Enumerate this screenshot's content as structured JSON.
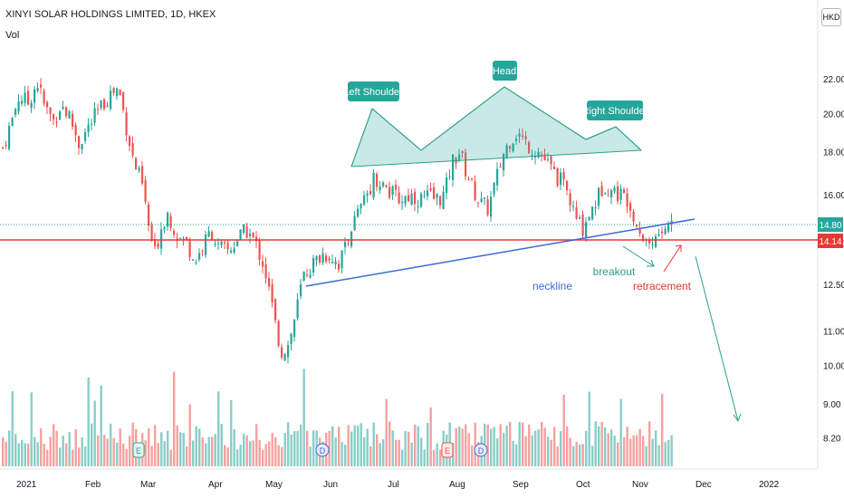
{
  "header": {
    "title": "XINYI SOLAR HOLDINGS LIMITED, 1D, HKEX",
    "volume_label": "Vol",
    "currency": "HKD"
  },
  "colors": {
    "up": "#26a69a",
    "down": "#ef5350",
    "neckline": "#3d6ad6",
    "pattern": "#2a9d8f",
    "support": "#e53935"
  },
  "chart_data": {
    "type": "candlestick",
    "scale": "log",
    "y_ticks": [
      8.2,
      9.0,
      10.0,
      11.0,
      12.5,
      14.0,
      16.0,
      18.0,
      20.0,
      22.0
    ],
    "y_range": [
      7.8,
      25.0
    ],
    "x_ticks": [
      "2021",
      "Feb",
      "Mar",
      "Apr",
      "May",
      "Jun",
      "Jul",
      "Aug",
      "Sep",
      "Oct",
      "Nov",
      "Dec",
      "2022"
    ],
    "price_labels": [
      {
        "text": "14.80",
        "value": 14.8,
        "color": "#26a69a"
      },
      {
        "text": "14.14",
        "value": 14.14,
        "color": "#e53935"
      }
    ],
    "approximate_closes": [
      {
        "x": "2021",
        "close": 18.2
      },
      {
        "x": "Jan mid",
        "close": 20.8
      },
      {
        "x": "Feb",
        "close": 19.0
      },
      {
        "x": "Feb late",
        "close": 21.6
      },
      {
        "x": "Mar",
        "close": 14.0
      },
      {
        "x": "Apr",
        "close": 13.8
      },
      {
        "x": "May",
        "close": 12.5
      },
      {
        "x": "May low",
        "close": 10.3
      },
      {
        "x": "Jun",
        "close": 13.2
      },
      {
        "x": "Jul",
        "close": 16.8
      },
      {
        "x": "Aug",
        "close": 18.2
      },
      {
        "x": "Aug mid",
        "close": 15.2
      },
      {
        "x": "Sep",
        "close": 19.2
      },
      {
        "x": "Oct",
        "close": 14.4
      },
      {
        "x": "Oct mid",
        "close": 16.8
      },
      {
        "x": "Nov",
        "close": 14.3
      },
      {
        "x": "Nov mid",
        "close": 14.8
      }
    ],
    "annotations": {
      "left_shoulder": "Left Shoulder",
      "head": "Head",
      "right_shoulder": "Right Shoulder",
      "neckline": "neckline",
      "breakout": "breakout",
      "retracement": "retracement"
    },
    "event_markers": [
      "E",
      "D",
      "E",
      "D"
    ]
  }
}
